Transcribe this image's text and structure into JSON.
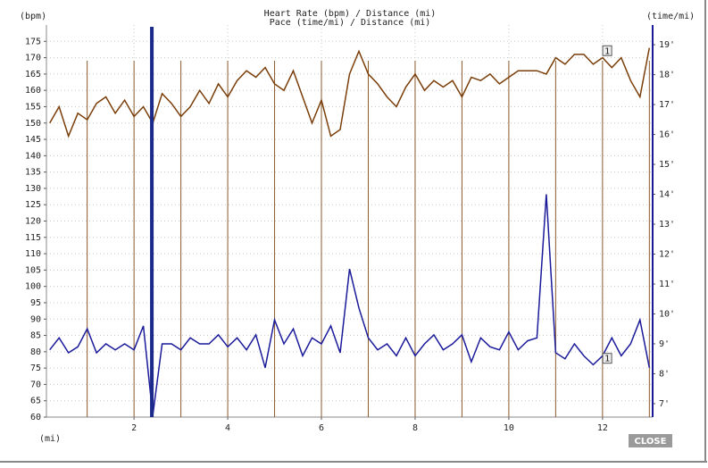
{
  "chart_data": {
    "type": "line",
    "title": "Heart Rate (bpm) / Distance (mi)",
    "subtitle": "Pace (time/mi) / Distance (mi)",
    "y_label": "(bpm)",
    "y2_label": "(time/mi)",
    "x_label": "(mi)",
    "x": [
      0.2,
      0.4,
      0.6,
      0.8,
      1.0,
      1.2,
      1.4,
      1.6,
      1.8,
      2.0,
      2.2,
      2.4,
      2.6,
      2.8,
      3.0,
      3.2,
      3.4,
      3.6,
      3.8,
      4.0,
      4.2,
      4.4,
      4.6,
      4.8,
      5.0,
      5.2,
      5.4,
      5.6,
      5.8,
      6.0,
      6.2,
      6.4,
      6.6,
      6.8,
      7.0,
      7.2,
      7.4,
      7.6,
      7.8,
      8.0,
      8.2,
      8.4,
      8.6,
      8.8,
      9.0,
      9.2,
      9.4,
      9.6,
      9.8,
      10.0,
      10.2,
      10.4,
      10.6,
      10.8,
      11.0,
      11.2,
      11.4,
      11.6,
      11.8,
      12.0,
      12.2,
      12.4,
      12.6,
      12.8,
      13.0
    ],
    "series": [
      {
        "name": "Heart Rate",
        "color": "#7a3e0a",
        "axis": "y",
        "values": [
          150,
          155,
          146,
          153,
          151,
          156,
          158,
          153,
          157,
          152,
          155,
          150,
          159,
          156,
          152,
          155,
          160,
          156,
          162,
          158,
          163,
          166,
          164,
          167,
          162,
          160,
          166,
          158,
          150,
          157,
          146,
          148,
          165,
          172,
          165,
          162,
          158,
          155,
          161,
          165,
          160,
          163,
          161,
          163,
          158,
          164,
          163,
          165,
          162,
          164,
          166,
          166,
          166,
          165,
          170,
          168,
          171,
          171,
          168,
          170,
          167,
          170,
          163,
          158,
          173
        ]
      },
      {
        "name": "Pace",
        "color": "#1a1a9a",
        "axis": "y2",
        "values": [
          8.8,
          9.2,
          8.7,
          8.9,
          9.5,
          8.7,
          9.0,
          8.8,
          9.0,
          8.8,
          9.6,
          6.6,
          9.0,
          9.0,
          8.8,
          9.2,
          9.0,
          9.0,
          9.3,
          8.9,
          9.2,
          8.8,
          9.3,
          8.2,
          9.8,
          9.0,
          9.5,
          8.6,
          9.2,
          9.0,
          9.6,
          8.7,
          11.5,
          10.2,
          9.2,
          8.8,
          9.0,
          8.6,
          9.2,
          8.6,
          9.0,
          9.3,
          8.8,
          9.0,
          9.3,
          8.4,
          9.2,
          8.9,
          8.8,
          9.4,
          8.8,
          9.1,
          9.2,
          14.0,
          8.7,
          8.5,
          9.0,
          8.6,
          8.3,
          8.6,
          9.2,
          8.6,
          9.0,
          9.8,
          8.2
        ]
      }
    ],
    "xlim": [
      0.13,
      13.07
    ],
    "xticks": [
      2,
      4,
      6,
      8,
      10,
      12
    ],
    "ylim": [
      60,
      180
    ],
    "yticks": [
      60,
      65,
      70,
      75,
      80,
      85,
      90,
      95,
      100,
      105,
      110,
      115,
      120,
      125,
      130,
      135,
      140,
      145,
      150,
      155,
      160,
      165,
      170,
      175
    ],
    "y2lim": [
      6.55,
      19.66
    ],
    "y2ticks": [
      {
        "value": 7,
        "label": "7'"
      },
      {
        "value": 8,
        "label": "8'"
      },
      {
        "value": 9,
        "label": "9'"
      },
      {
        "value": 10,
        "label": "10'"
      },
      {
        "value": 11,
        "label": "11'"
      },
      {
        "value": 12,
        "label": "12'"
      },
      {
        "value": 13,
        "label": "13'"
      },
      {
        "value": 14,
        "label": "14'"
      },
      {
        "value": 15,
        "label": "15'"
      },
      {
        "value": 16,
        "label": "16'"
      },
      {
        "value": 17,
        "label": "17'"
      },
      {
        "value": 18,
        "label": "18'"
      },
      {
        "value": 19,
        "label": "19'"
      }
    ],
    "grid": true,
    "lap_markers": [
      1,
      2,
      3,
      4,
      5,
      6,
      7,
      8,
      9,
      10,
      11,
      12,
      13
    ],
    "lap_color": "#8b5a2b",
    "cursor_x": 2.38,
    "cursor_color": "#1c2a8c",
    "annotations": [
      {
        "text": "1",
        "x": 12.1,
        "y": 172
      },
      {
        "text": "1",
        "x": 12.1,
        "y2": 8.5
      }
    ],
    "close_button": "CLOSE"
  }
}
